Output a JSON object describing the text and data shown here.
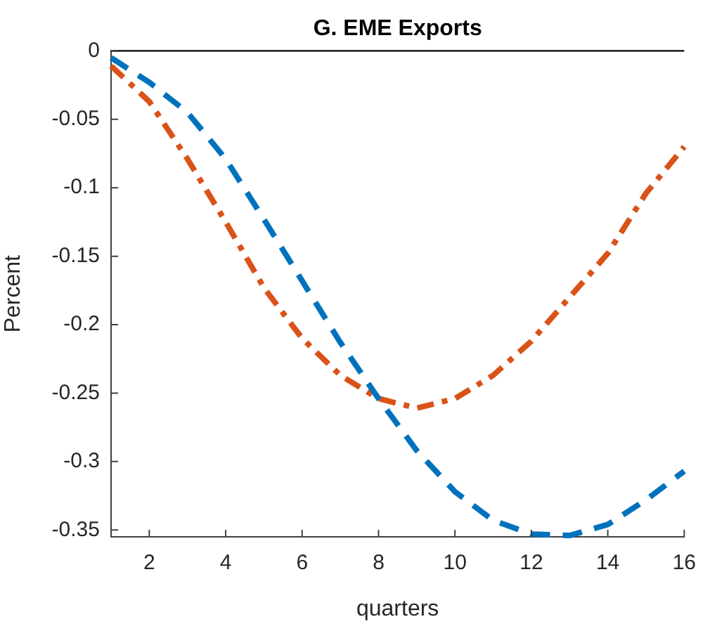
{
  "chart_data": {
    "type": "line",
    "title": "G. EME Exports",
    "xlabel": "quarters",
    "ylabel": "Percent",
    "x": [
      1,
      2,
      3,
      4,
      5,
      6,
      7,
      8,
      9,
      10,
      11,
      12,
      13,
      14,
      15,
      16
    ],
    "series": [
      {
        "color": "#0072bd",
        "line_style": "dashed",
        "values": [
          -0.005,
          -0.023,
          -0.045,
          -0.079,
          -0.123,
          -0.168,
          -0.213,
          -0.254,
          -0.292,
          -0.322,
          -0.343,
          -0.353,
          -0.354,
          -0.346,
          -0.328,
          -0.307
        ]
      },
      {
        "color": "#d95319",
        "line_style": "dashdot",
        "values": [
          -0.011,
          -0.037,
          -0.079,
          -0.125,
          -0.173,
          -0.21,
          -0.237,
          -0.254,
          -0.261,
          -0.254,
          -0.237,
          -0.212,
          -0.18,
          -0.148,
          -0.104,
          -0.07
        ]
      }
    ],
    "xlim": [
      1,
      16
    ],
    "xticks": [
      2,
      4,
      6,
      8,
      10,
      12,
      14,
      16
    ],
    "ylim": [
      -0.355,
      0
    ],
    "yticks": [
      0,
      -0.05,
      -0.1,
      -0.15,
      -0.2,
      -0.25,
      -0.3,
      -0.35
    ],
    "grid": false,
    "legend": false,
    "marker": "none",
    "ref_lines": [
      {
        "axis": "y",
        "value": 0,
        "color": "#000000"
      }
    ]
  }
}
